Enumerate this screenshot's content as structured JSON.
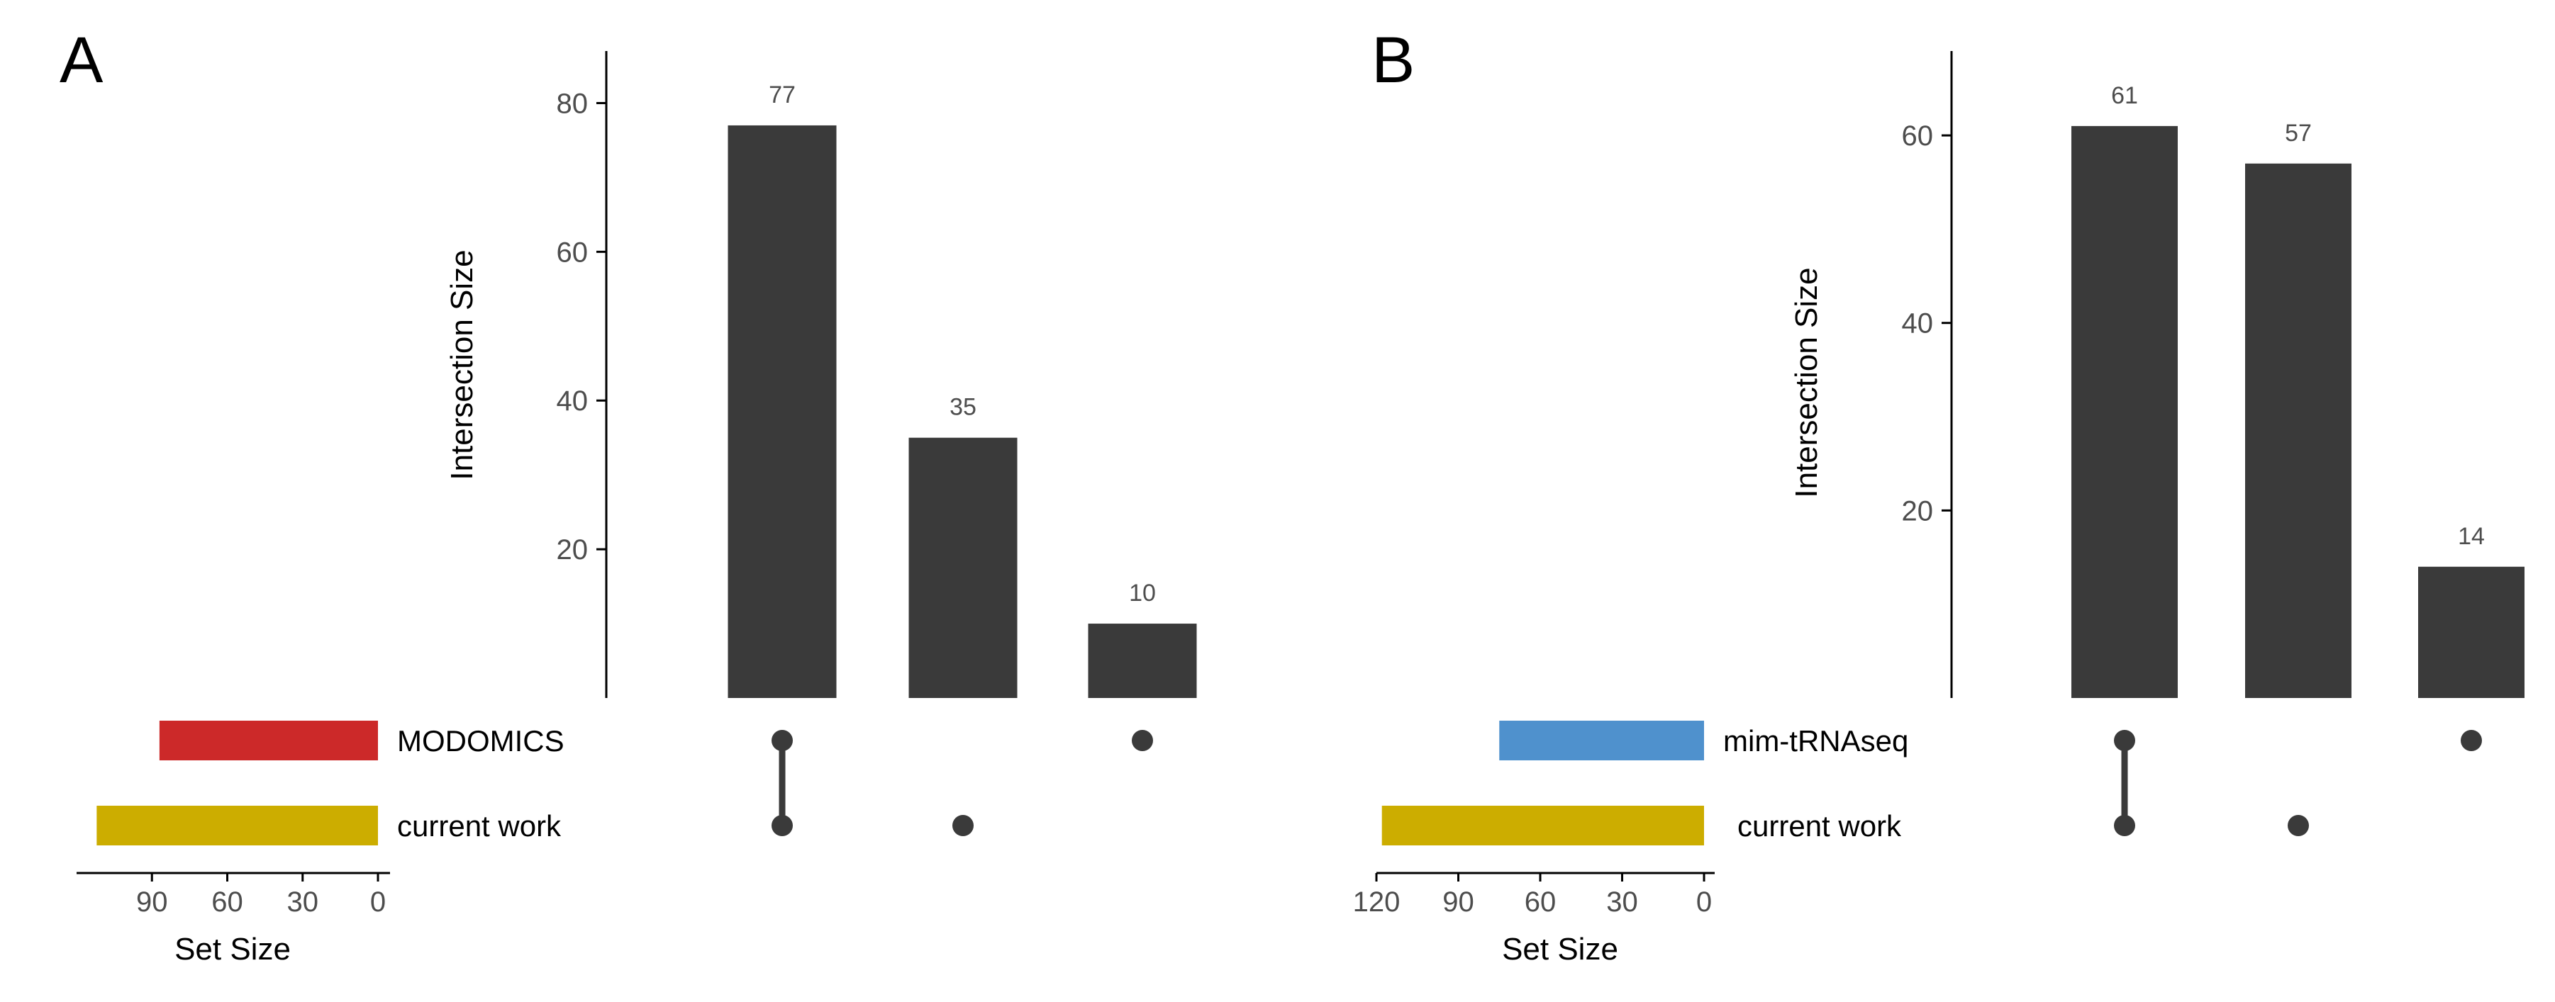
{
  "chart_data": [
    {
      "type": "bar",
      "panel_label": "A",
      "ylabel": "Intersection Size",
      "yticks": [
        20,
        40,
        60,
        80
      ],
      "ylim": [
        0,
        87
      ],
      "set_size_label": "Set Size",
      "set_size_ticks": [
        90,
        60,
        30,
        0
      ],
      "set_size_max": 120,
      "sets": [
        {
          "name": "MODOMICS",
          "size": 87,
          "color": "#CC2929"
        },
        {
          "name": "current work",
          "size": 112,
          "color": "#CCAD00"
        }
      ],
      "intersections": [
        {
          "value": 77,
          "members": [
            0,
            1
          ]
        },
        {
          "value": 35,
          "members": [
            1
          ]
        },
        {
          "value": 10,
          "members": [
            0
          ]
        }
      ],
      "bar_color": "#3A3A3A"
    },
    {
      "type": "bar",
      "panel_label": "B",
      "ylabel": "Intersection Size",
      "yticks": [
        20,
        40,
        60
      ],
      "ylim": [
        0,
        69
      ],
      "set_size_label": "Set Size",
      "set_size_ticks": [
        120,
        90,
        60,
        30,
        0
      ],
      "set_size_max": 120,
      "sets": [
        {
          "name": "mim-tRNAseq",
          "size": 75,
          "color": "#4F91CD"
        },
        {
          "name": "current work",
          "size": 118,
          "color": "#CCAD00"
        }
      ],
      "intersections": [
        {
          "value": 61,
          "members": [
            0,
            1
          ]
        },
        {
          "value": 57,
          "members": [
            1
          ]
        },
        {
          "value": 14,
          "members": [
            0
          ]
        }
      ],
      "bar_color": "#3A3A3A"
    }
  ]
}
